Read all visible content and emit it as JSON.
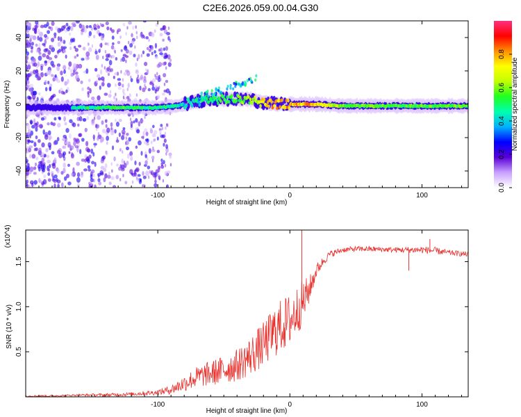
{
  "title": "C2E6.2026.059.00.04.G30",
  "chart_data": [
    {
      "type": "heatmap",
      "title": "C2E6.2026.059.00.04.G30",
      "xlabel": "Height of straight line (km)",
      "ylabel": "Frequency (Hz)",
      "xlim": [
        -200,
        135
      ],
      "ylim": [
        -50,
        50
      ],
      "x_ticks": [
        -100,
        0,
        100
      ],
      "y_ticks": [
        -40,
        -20,
        0,
        20,
        40
      ],
      "colorbar": {
        "label": "Normalized spectral amplitude",
        "range": [
          0.0,
          1.0
        ],
        "ticks": [
          "0.0",
          "0.2",
          "0.4",
          "0.6",
          "0.8"
        ],
        "colormap": [
          "#ffffff",
          "#c8a0ff",
          "#5a00d8",
          "#0000ff",
          "#00b0ff",
          "#00ffb0",
          "#20ff20",
          "#c0ff00",
          "#ffff00",
          "#ff9000",
          "#ff0000",
          "#ff3080"
        ]
      },
      "ridge": [
        {
          "x": -160,
          "y": -2,
          "amp": 0.5
        },
        {
          "x": -140,
          "y": -2,
          "amp": 0.55
        },
        {
          "x": -120,
          "y": -2,
          "amp": 0.55
        },
        {
          "x": -100,
          "y": -2,
          "amp": 0.5
        },
        {
          "x": -85,
          "y": -1,
          "amp": 0.45
        },
        {
          "x": -70,
          "y": 2,
          "amp": 0.45
        },
        {
          "x": -60,
          "y": 3,
          "amp": 0.5
        },
        {
          "x": -50,
          "y": 3,
          "amp": 0.55
        },
        {
          "x": -40,
          "y": 3,
          "amp": 0.6
        },
        {
          "x": -30,
          "y": 3,
          "amp": 0.65
        },
        {
          "x": -20,
          "y": 1,
          "amp": 0.85
        },
        {
          "x": -10,
          "y": 0,
          "amp": 0.9
        },
        {
          "x": 0,
          "y": 0,
          "amp": 0.9
        },
        {
          "x": 10,
          "y": 0,
          "amp": 0.9
        },
        {
          "x": 20,
          "y": 0,
          "amp": 0.85
        },
        {
          "x": 40,
          "y": -1,
          "amp": 0.65
        },
        {
          "x": 60,
          "y": -1,
          "amp": 0.6
        },
        {
          "x": 80,
          "y": -1,
          "amp": 0.6
        },
        {
          "x": 100,
          "y": -1,
          "amp": 0.6
        },
        {
          "x": 120,
          "y": -1,
          "amp": 0.6
        },
        {
          "x": 135,
          "y": -1,
          "amp": 0.6
        }
      ]
    },
    {
      "type": "line",
      "xlabel": "Height of straight line (km)",
      "ylabel": "SNR (10 * v/v)",
      "y_multiplier": "(x10^4)",
      "xlim": [
        -200,
        135
      ],
      "ylim": [
        0,
        1.85
      ],
      "x_ticks": [
        -100,
        0,
        100
      ],
      "y_ticks": [
        0.5,
        1.0,
        1.5
      ],
      "series": [
        {
          "color": "#e8302c",
          "x": [
            -200,
            -180,
            -160,
            -140,
            -120,
            -100,
            -90,
            -80,
            -70,
            -60,
            -50,
            -40,
            -30,
            -20,
            -10,
            0,
            5,
            10,
            15,
            20,
            25,
            30,
            40,
            50,
            60,
            80,
            100,
            110,
            120,
            135
          ],
          "y_mean": [
            0.01,
            0.01,
            0.02,
            0.02,
            0.03,
            0.05,
            0.08,
            0.15,
            0.22,
            0.26,
            0.3,
            0.35,
            0.45,
            0.58,
            0.75,
            0.85,
            0.95,
            1.05,
            1.2,
            1.4,
            1.5,
            1.58,
            1.63,
            1.64,
            1.64,
            1.63,
            1.63,
            1.62,
            1.6,
            1.58
          ],
          "y_noise": [
            0.01,
            0.01,
            0.01,
            0.02,
            0.02,
            0.03,
            0.05,
            0.09,
            0.12,
            0.14,
            0.16,
            0.18,
            0.22,
            0.25,
            0.3,
            0.3,
            0.28,
            0.25,
            0.15,
            0.08,
            0.05,
            0.04,
            0.03,
            0.03,
            0.03,
            0.03,
            0.04,
            0.04,
            0.03,
            0.03
          ],
          "peaks": [
            {
              "x": 9,
              "y": 1.85
            },
            {
              "x": 106,
              "y": 1.75
            },
            {
              "x": 90,
              "y": 1.4
            }
          ]
        }
      ]
    }
  ]
}
